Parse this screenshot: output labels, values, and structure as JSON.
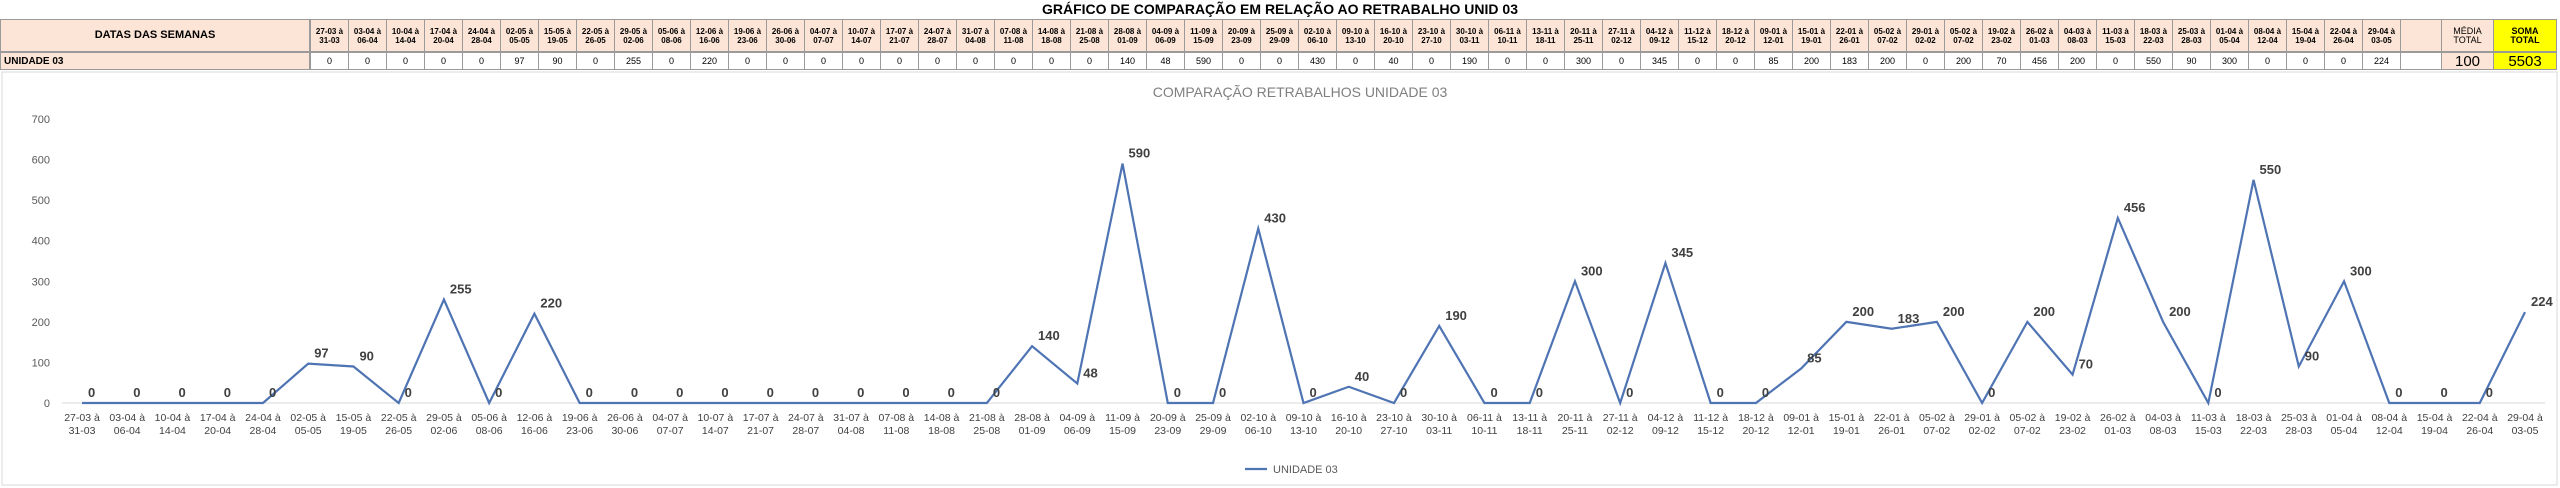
{
  "table": {
    "title": "GRÁFICO DE COMPARAÇÃO EM RELAÇÃO AO RETRABALHO UNID 03",
    "header_label": "DATAS DAS SEMANAS",
    "row_label": "UNIDADE 03",
    "average_label": "MÉDIA TOTAL",
    "average": 100,
    "total_label": "SOMA TOTAL",
    "total": 5503
  },
  "chart_data": {
    "type": "line",
    "title": "COMPARAÇÃO RETRABALHOS UNIDADE 03",
    "categories": [
      "27-03 à 31-03",
      "03-04 à 06-04",
      "10-04 à 14-04",
      "17-04 à 20-04",
      "24-04 à 28-04",
      "02-05 à 05-05",
      "15-05 à 19-05",
      "22-05 à 26-05",
      "29-05 à 02-06",
      "05-06 à 08-06",
      "12-06 à 16-06",
      "19-06 à 23-06",
      "26-06 à 30-06",
      "04-07 à 07-07",
      "10-07 à 14-07",
      "17-07 à 21-07",
      "24-07 à 28-07",
      "31-07 à 04-08",
      "07-08 à 11-08",
      "14-08 à 18-08",
      "21-08 à 25-08",
      "28-08 à 01-09",
      "04-09 à 06-09",
      "11-09 à 15-09",
      "20-09 à 23-09",
      "25-09 à 29-09",
      "02-10 à 06-10",
      "09-10 à 13-10",
      "16-10 à 20-10",
      "23-10 à 27-10",
      "30-10 à 03-11",
      "06-11 à 10-11",
      "13-11 à 18-11",
      "20-11 à 25-11",
      "27-11 à 02-12",
      "04-12 à 09-12",
      "11-12 à 15-12",
      "18-12 à 20-12",
      "09-01 à 12-01",
      "15-01 à 19-01",
      "22-01 à 26-01",
      "05-02 à 07-02",
      "29-01 à 02-02",
      "05-02 à 07-02",
      "19-02 à 23-02",
      "26-02 à 01-03",
      "04-03 à 08-03",
      "11-03 à 15-03",
      "18-03 à 22-03",
      "25-03 à 28-03",
      "01-04 à 05-04",
      "08-04 à 12-04",
      "15-04 à 19-04",
      "22-04 à 26-04",
      "29-04 à 03-05"
    ],
    "series": [
      {
        "name": "UNIDADE 03",
        "color": "#4f74b3",
        "values": [
          0,
          0,
          0,
          0,
          0,
          97,
          90,
          0,
          255,
          0,
          220,
          0,
          0,
          0,
          0,
          0,
          0,
          0,
          0,
          0,
          0,
          140,
          48,
          590,
          0,
          0,
          430,
          0,
          40,
          0,
          190,
          0,
          0,
          300,
          0,
          345,
          0,
          0,
          85,
          200,
          183,
          200,
          0,
          200,
          70,
          456,
          200,
          0,
          550,
          90,
          300,
          0,
          0,
          0,
          224
        ]
      }
    ],
    "ylim": [
      0,
      700
    ],
    "yticks": [
      0,
      100,
      200,
      300,
      400,
      500,
      600,
      700
    ],
    "grid": false,
    "legend": "bottom"
  }
}
